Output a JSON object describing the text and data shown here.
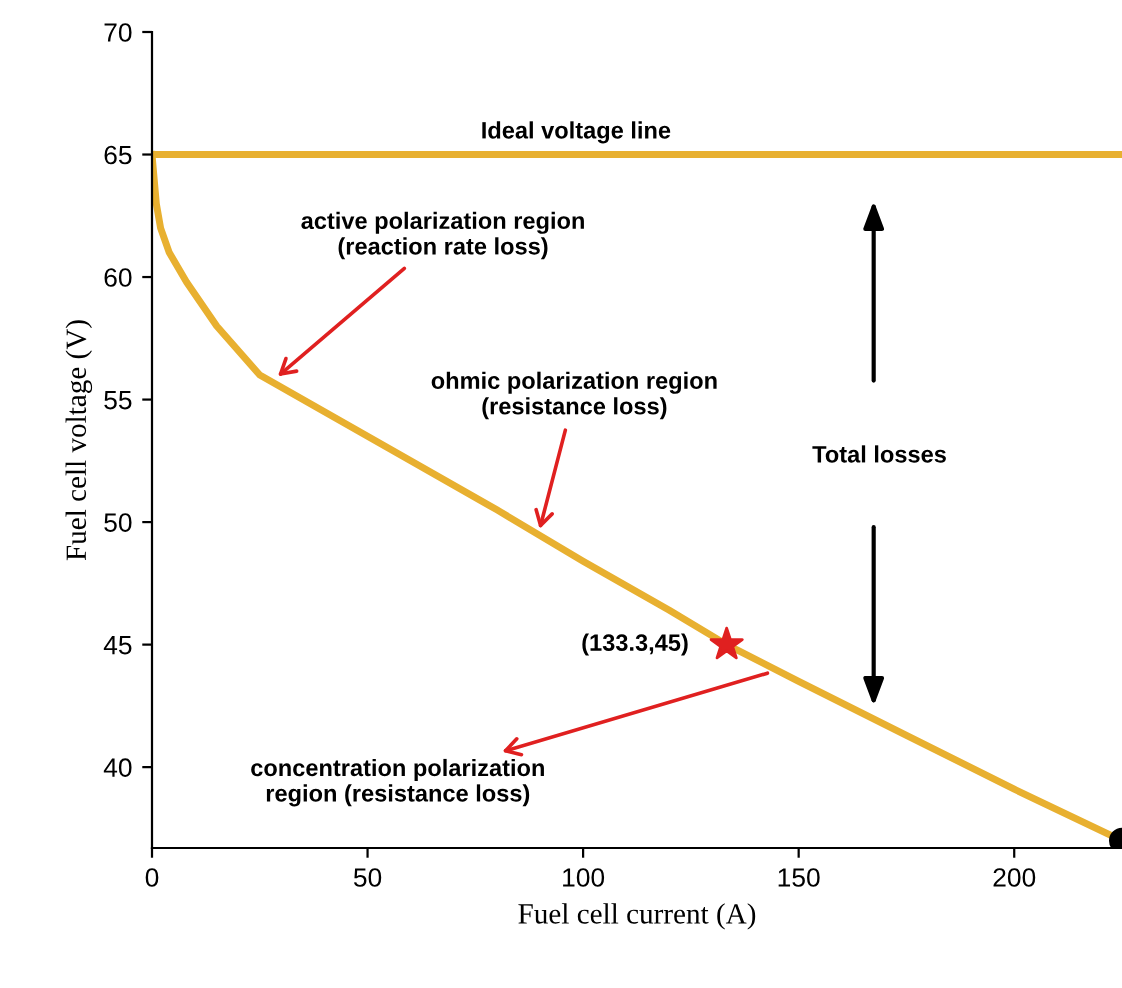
{
  "chart_data": {
    "type": "line",
    "xlabel": "Fuel cell current (A)",
    "ylabel": "Fuel cell voltage (V)",
    "xlim": [
      0,
      225
    ],
    "ylim": [
      36.7,
      70
    ],
    "xticks": [
      0,
      50,
      100,
      150,
      200
    ],
    "yticks": [
      40,
      45,
      50,
      55,
      60,
      65,
      70
    ],
    "series": [
      {
        "name": "Ideal voltage line",
        "x": [
          0,
          225
        ],
        "values": [
          65,
          65
        ],
        "color": "#e8b030"
      },
      {
        "x": [
          0,
          0.5,
          1,
          2,
          4,
          8,
          15,
          25,
          40,
          60,
          80,
          100,
          120,
          133.3,
          150,
          175,
          200,
          225
        ],
        "values": [
          65,
          64,
          63,
          62,
          61,
          59.8,
          58,
          56,
          54.5,
          52.5,
          50.5,
          48.4,
          46.4,
          45,
          43.5,
          41.3,
          39.1,
          37
        ],
        "color": "#e8b030"
      },
      {
        "type": "scatter",
        "x": [
          133.3
        ],
        "values": [
          45
        ],
        "color": "#e02020",
        "marker": "star"
      },
      {
        "type": "scatter",
        "x": [
          225
        ],
        "values": [
          37
        ],
        "color": "#000000",
        "marker": "circle"
      }
    ],
    "annotations": [
      {
        "text": "active polarization region\n(reaction rate loss)",
        "x": 28.2,
        "y": 55.8
      },
      {
        "text": "ohmic polarization region\n(resistance loss)",
        "x": 89.6,
        "y": 49.5
      },
      {
        "text": "concentration polarization\nregion (resistance loss)",
        "x": 144,
        "y": 43.9
      },
      {
        "text": "(133.3,45)",
        "x": 133.3,
        "y": 45
      },
      "Total losses"
    ]
  }
}
